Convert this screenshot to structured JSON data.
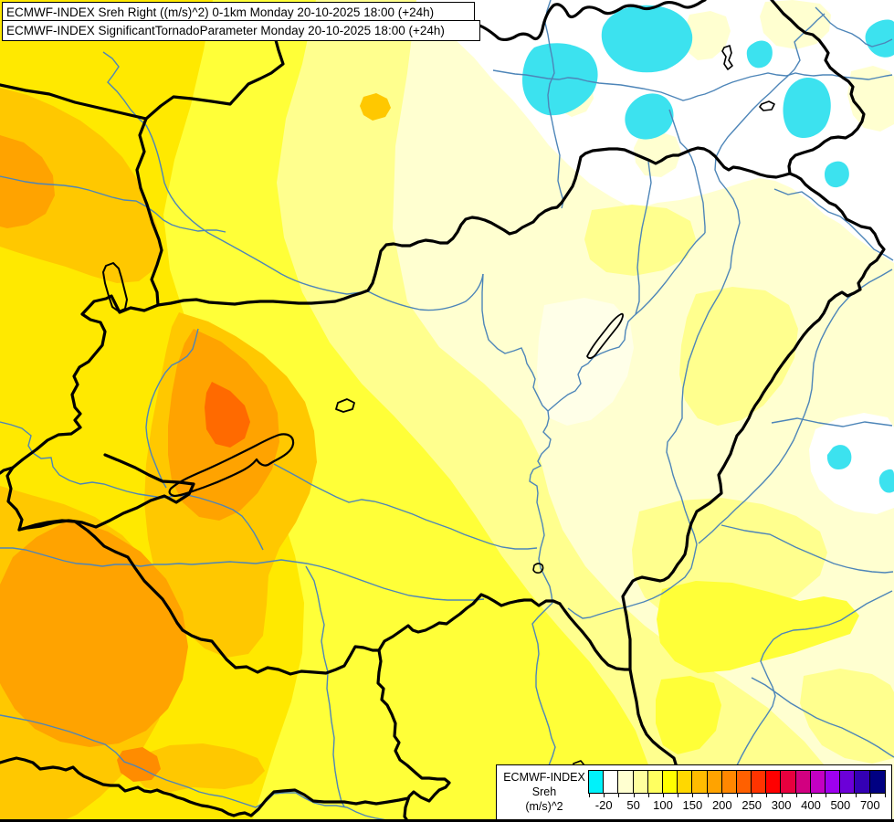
{
  "title_box": {
    "line1": "ECMWF-INDEX Sreh Right ((m/s)^2) 0-1km Monday 20-10-2025 18:00 (+24h)",
    "line2": "ECMWF-INDEX SignificantTornadoParameter Monday 20-10-2025 18:00 (+24h)"
  },
  "legend": {
    "title_lines": [
      "ECMWF-INDEX",
      "Sreh",
      "(m/s)^2"
    ],
    "tick_labels": [
      "-20",
      "50",
      "100",
      "150",
      "200",
      "250",
      "300",
      "400",
      "500",
      "700"
    ],
    "labeled_boundaries": [
      1,
      3,
      5,
      7,
      9,
      11,
      13,
      15,
      17,
      19
    ],
    "cell_colors": [
      "#00F2FA",
      "#FFFFFF",
      "#FFFFD0",
      "#FFFF9E",
      "#FFFF60",
      "#FFFF00",
      "#FFD800",
      "#FFBC00",
      "#FFA300",
      "#FF8700",
      "#FF6000",
      "#FF3400",
      "#FF0000",
      "#E7003E",
      "#D20080",
      "#C300C3",
      "#9E00EF",
      "#6C00D8",
      "#3400B4",
      "#000082"
    ]
  },
  "palette": {
    "base": "#FFFFD0",
    "offwhite": "#FFFFE8",
    "pale2": "#FFFF8E",
    "bright": "#FFFF38",
    "yellow": "#FFE900",
    "gold": "#FFC800",
    "orange": "#FFA300",
    "core2": "#FF8C00",
    "core": "#FF6A00",
    "white": "#FFFFFF",
    "cyan": "#3CE2EF",
    "river": "#4D85B8",
    "border": "#000000",
    "lake_outline": "#000000"
  }
}
